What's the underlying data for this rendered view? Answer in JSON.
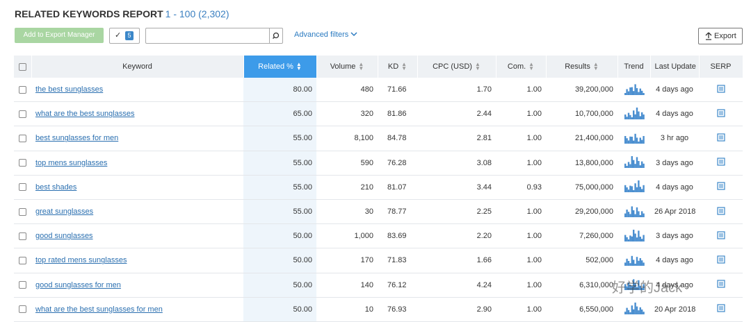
{
  "header": {
    "title": "RELATED KEYWORDS REPORT",
    "range": "1 - 100 (2,302)"
  },
  "toolbar": {
    "add_button": "Add to Export Manager",
    "selected_count": "5",
    "advanced_filters": "Advanced filters",
    "export": "Export"
  },
  "table": {
    "columns": [
      "Keyword",
      "Related %",
      "Volume",
      "KD",
      "CPC (USD)",
      "Com.",
      "Results",
      "Trend",
      "Last Update",
      "SERP"
    ],
    "rows": [
      [
        "the best sunglasses",
        "80.00",
        "480",
        "71.66",
        "1.70",
        "1.00",
        "39,200,000",
        "4 days ago"
      ],
      [
        "what are the best sunglasses",
        "65.00",
        "320",
        "81.86",
        "2.44",
        "1.00",
        "10,700,000",
        "4 days ago"
      ],
      [
        "best sunglasses for men",
        "55.00",
        "8,100",
        "84.78",
        "2.81",
        "1.00",
        "21,400,000",
        "3 hr ago"
      ],
      [
        "top mens sunglasses",
        "55.00",
        "590",
        "76.28",
        "3.08",
        "1.00",
        "13,800,000",
        "3 days ago"
      ],
      [
        "best shades",
        "55.00",
        "210",
        "81.07",
        "3.44",
        "0.93",
        "75,000,000",
        "4 days ago"
      ],
      [
        "great sunglasses",
        "55.00",
        "30",
        "78.77",
        "2.25",
        "1.00",
        "29,200,000",
        "26 Apr 2018"
      ],
      [
        "good sunglasses",
        "50.00",
        "1,000",
        "83.69",
        "2.20",
        "1.00",
        "7,260,000",
        "3 days ago"
      ],
      [
        "top rated mens sunglasses",
        "50.00",
        "170",
        "71.83",
        "1.66",
        "1.00",
        "502,000",
        "4 days ago"
      ],
      [
        "good sunglasses for men",
        "50.00",
        "140",
        "76.12",
        "4.24",
        "1.00",
        "6,310,000",
        "4 days ago"
      ],
      [
        "what are the best sunglasses for men",
        "50.00",
        "10",
        "76.93",
        "2.90",
        "1.00",
        "6,550,000",
        "20 Apr 2018"
      ]
    ]
  },
  "watermark": "好学的Jack"
}
